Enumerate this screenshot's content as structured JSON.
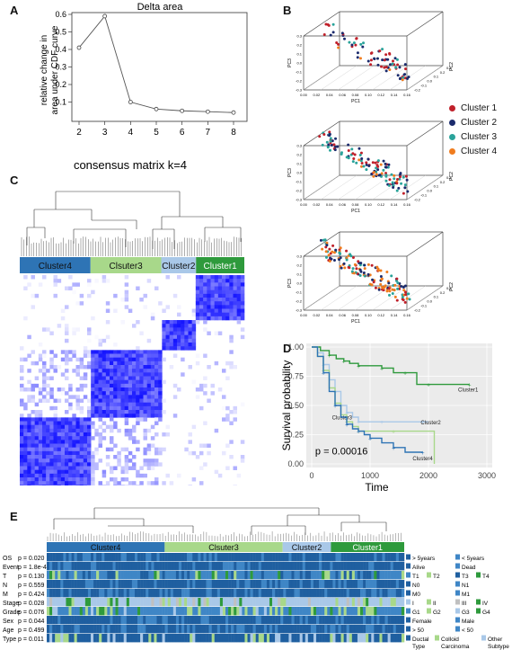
{
  "panels": {
    "a": "A",
    "b": "B",
    "c": "C",
    "d": "D",
    "e": "E"
  },
  "panel_a": {
    "title": "Delta area",
    "ylabel_line1": "relative change in",
    "ylabel_line2": "area under CDF curve"
  },
  "panel_b": {
    "xlabel": "PC1",
    "ylabel": "PC3",
    "zlabel": "PC2",
    "legend": [
      {
        "label": "Cluster 1",
        "color": "#c0202a"
      },
      {
        "label": "Cluster 2",
        "color": "#1a2a6c"
      },
      {
        "label": "Cluster 3",
        "color": "#2aa39a"
      },
      {
        "label": "Cluster 4",
        "color": "#f07c1e"
      }
    ],
    "x_ticks": [
      "0.00",
      "0.02",
      "0.04",
      "0.06",
      "0.08",
      "0.10",
      "0.12",
      "0.14",
      "0.16"
    ],
    "y_ticks": [
      "-0.3",
      "-0.2",
      "-0.1",
      "0.0",
      "0.1",
      "0.2",
      "0.3"
    ],
    "z_ticks": [
      "0.3",
      "0.2",
      "0.1",
      "0.0",
      "-0.1",
      "-0.2"
    ]
  },
  "panel_c": {
    "title": "consensus matrix k=4",
    "clusters": [
      {
        "label": "Cluster4",
        "color": "#2e74b5"
      },
      {
        "label": "Clsuter3",
        "color": "#a8d88a"
      },
      {
        "label": "Cluster2",
        "color": "#a9c8e8"
      },
      {
        "label": "Cluster1",
        "color": "#2e9a3c"
      }
    ]
  },
  "panel_e": {
    "clusters": [
      {
        "label": "Cluster4",
        "color": "#2e74b5"
      },
      {
        "label": "Clsuter3",
        "color": "#a8d88a"
      },
      {
        "label": "Cluster2",
        "color": "#a9c8e8"
      },
      {
        "label": "Cluster1",
        "color": "#2e9a3c"
      }
    ],
    "rows": [
      {
        "name": "OS",
        "p": "p = 0.020"
      },
      {
        "name": "Event",
        "p": "p = 1.8e-4"
      },
      {
        "name": "T",
        "p": "p = 0.130"
      },
      {
        "name": "N",
        "p": "p = 0.559"
      },
      {
        "name": "M",
        "p": "p = 0.424"
      },
      {
        "name": "Stage",
        "p": "p = 0.028"
      },
      {
        "name": "Grade",
        "p": "p = 0.076"
      },
      {
        "name": "Sex",
        "p": "p = 0.044"
      },
      {
        "name": "Age",
        "p": "p = 0.499"
      },
      {
        "name": "Type",
        "p": "p = 0.011"
      }
    ],
    "legend": [
      [
        {
          "t": "> 5years",
          "c": "#1f5fa0"
        },
        {
          "t": "< 5years",
          "c": "#3f86c6"
        }
      ],
      [
        {
          "t": "Alive",
          "c": "#1f5fa0"
        },
        {
          "t": "Dead",
          "c": "#3f86c6"
        }
      ],
      [
        {
          "t": "T1",
          "c": "#3f86c6"
        },
        {
          "t": "T2",
          "c": "#a8d88a"
        },
        {
          "t": "T3",
          "c": "#1f5fa0"
        },
        {
          "t": "T4",
          "c": "#2e9a3c"
        }
      ],
      [
        {
          "t": "N0",
          "c": "#1f5fa0"
        },
        {
          "t": "N1",
          "c": "#3f86c6"
        }
      ],
      [
        {
          "t": "M0",
          "c": "#1f5fa0"
        },
        {
          "t": "M1",
          "c": "#3f86c6"
        }
      ],
      [
        {
          "t": "I",
          "c": "#a9c8e8"
        },
        {
          "t": "II",
          "c": "#a8d88a"
        },
        {
          "t": "III",
          "c": "#c0c0c0"
        },
        {
          "t": "IV",
          "c": "#2e9a3c"
        }
      ],
      [
        {
          "t": "G1",
          "c": "#3f86c6"
        },
        {
          "t": "G2",
          "c": "#a8d88a"
        },
        {
          "t": "G3",
          "c": "#a9c8e8"
        },
        {
          "t": "G4",
          "c": "#2e9a3c"
        }
      ],
      [
        {
          "t": "Female",
          "c": "#1f5fa0"
        },
        {
          "t": "Male",
          "c": "#3f86c6"
        }
      ],
      [
        {
          "t": "> 50",
          "c": "#1f5fa0"
        },
        {
          "t": "< 50",
          "c": "#3f86c6"
        }
      ],
      [
        {
          "t": "Ductal",
          "c": "#1f5fa0"
        },
        {
          "t": "Colloid",
          "c": "#a8d88a"
        },
        {
          "t": "Other",
          "c": "#a9c8e8"
        }
      ]
    ],
    "legend_extra": [
      {
        "t": "Type"
      },
      {
        "t": "Carcinoma"
      },
      {
        "t": "Subtype"
      }
    ]
  },
  "chart_data": [
    {
      "type": "line",
      "title": "Delta area",
      "xlabel": "",
      "ylabel": "relative change in area under CDF curve",
      "x": [
        2,
        3,
        4,
        5,
        6,
        7,
        8
      ],
      "values": [
        0.41,
        0.59,
        0.1,
        0.06,
        0.05,
        0.045,
        0.04
      ],
      "xlim": [
        2,
        8
      ],
      "ylim": [
        0,
        0.6
      ],
      "x_ticks": [
        "2",
        "3",
        "4",
        "5",
        "6",
        "7",
        "8"
      ],
      "y_ticks": [
        "0.1",
        "0.2",
        "0.3",
        "0.4",
        "0.5",
        "0.6"
      ]
    },
    {
      "type": "line",
      "title": "",
      "xlabel": "Time",
      "ylabel": "Survival probability",
      "xlim": [
        0,
        3000
      ],
      "ylim": [
        0,
        1
      ],
      "x_ticks": [
        "0",
        "1000",
        "2000",
        "3000"
      ],
      "y_ticks": [
        "0.00",
        "0.25",
        "0.50",
        "0.75",
        "1.00"
      ],
      "annotation": "p = 0.00016",
      "series": [
        {
          "name": "Cluster1",
          "color": "#2e9a3c",
          "x": [
            0,
            150,
            300,
            420,
            550,
            650,
            800,
            1000,
            1200,
            1400,
            1600,
            1800,
            2000,
            2200,
            2700
          ],
          "y": [
            1.0,
            0.97,
            0.93,
            0.9,
            0.88,
            0.86,
            0.84,
            0.84,
            0.82,
            0.78,
            0.78,
            0.68,
            0.68,
            0.68,
            0.68
          ]
        },
        {
          "name": "Cluster2",
          "color": "#a9c8e8",
          "x": [
            0,
            100,
            200,
            300,
            400,
            500,
            600,
            700,
            800,
            1000,
            1200,
            1500,
            1900,
            2000
          ],
          "y": [
            1.0,
            0.95,
            0.85,
            0.72,
            0.62,
            0.5,
            0.44,
            0.4,
            0.36,
            0.36,
            0.36,
            0.36,
            0.36,
            0.36
          ]
        },
        {
          "name": "Cluster3",
          "color": "#a8d88a",
          "x": [
            0,
            100,
            200,
            300,
            400,
            500,
            600,
            700,
            800,
            1000,
            1400,
            2100
          ],
          "y": [
            1.0,
            0.92,
            0.8,
            0.65,
            0.52,
            0.42,
            0.36,
            0.32,
            0.28,
            0.28,
            0.28,
            0.0
          ]
        },
        {
          "name": "Cluster4",
          "color": "#2e74b5",
          "x": [
            0,
            100,
            200,
            300,
            400,
            500,
            600,
            700,
            800,
            900,
            1000,
            1200,
            1400,
            1600,
            1900
          ],
          "y": [
            1.0,
            0.92,
            0.78,
            0.62,
            0.5,
            0.4,
            0.34,
            0.3,
            0.28,
            0.25,
            0.22,
            0.18,
            0.14,
            0.1,
            0.1
          ]
        }
      ]
    }
  ]
}
